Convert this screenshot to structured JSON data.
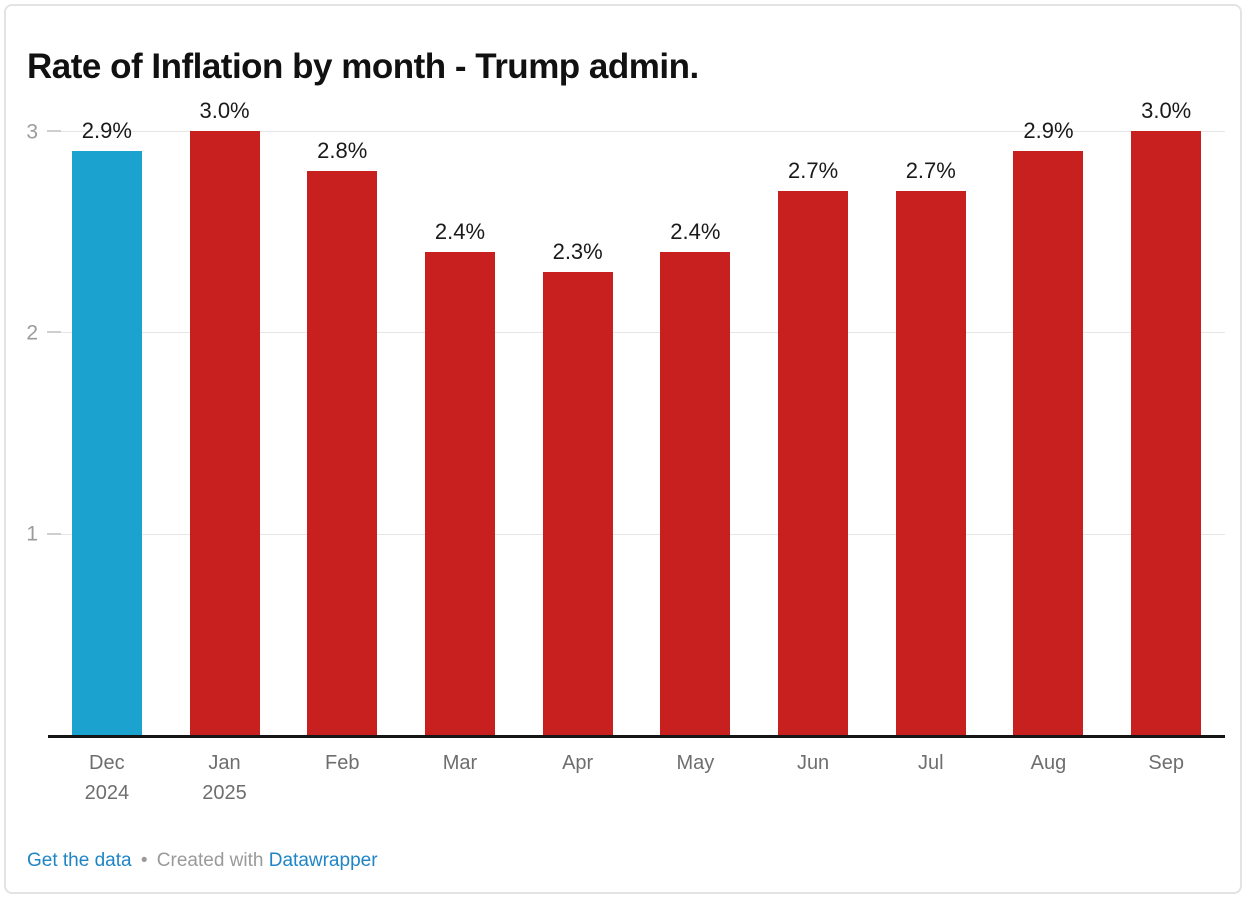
{
  "title": "Rate of Inflation by month - Trump admin.",
  "chart_data": {
    "type": "bar",
    "title": "Rate of Inflation by month - Trump admin.",
    "categories": [
      "Dec\n2024",
      "Jan\n2025",
      "Feb",
      "Mar",
      "Apr",
      "May",
      "Jun",
      "Jul",
      "Aug",
      "Sep"
    ],
    "values": [
      2.9,
      3.0,
      2.8,
      2.4,
      2.3,
      2.4,
      2.7,
      2.7,
      2.9,
      3.0
    ],
    "value_labels": [
      "2.9%",
      "3.0%",
      "2.8%",
      "2.4%",
      "2.3%",
      "2.4%",
      "2.7%",
      "2.7%",
      "2.9%",
      "3.0%"
    ],
    "bar_colors": [
      "#1CA2CE",
      "#C8201E",
      "#C8201E",
      "#C8201E",
      "#C8201E",
      "#C8201E",
      "#C8201E",
      "#C8201E",
      "#C8201E",
      "#C8201E"
    ],
    "xlabel": "",
    "ylabel": "",
    "ylim": [
      0,
      3
    ],
    "yticks": [
      1,
      2,
      3
    ],
    "grid": true,
    "legend": "none",
    "colors": {
      "highlight_bar": "#1CA2CE",
      "default_bar": "#C8201E",
      "gridline": "#e6e6e6",
      "axis_baseline": "#151515",
      "tick_label": "#9b9b9b",
      "category_label": "#6e6e6e",
      "value_label": "#1a1a1a"
    }
  },
  "footer": {
    "get_data_label": "Get the data",
    "separator": "•",
    "credit_text": "Created with",
    "credit_link_label": "Datawrapper"
  }
}
